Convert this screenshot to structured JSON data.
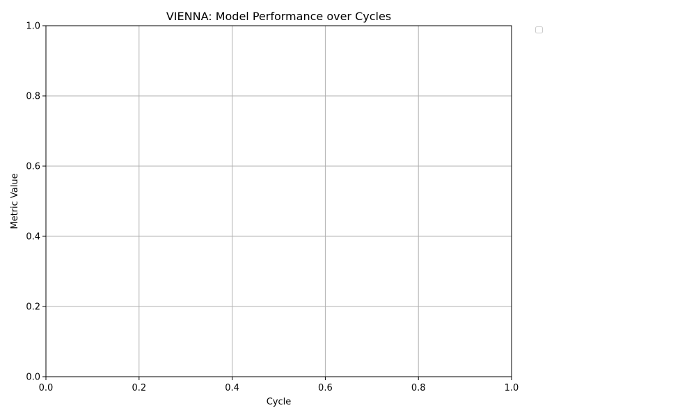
{
  "chart_data": {
    "type": "line",
    "title": "VIENNA: Model Performance over Cycles",
    "xlabel": "Cycle",
    "ylabel": "Metric Value",
    "xlim": [
      0.0,
      1.0
    ],
    "ylim": [
      0.0,
      1.0
    ],
    "x_ticks": [
      "0.0",
      "0.2",
      "0.4",
      "0.6",
      "0.8",
      "1.0"
    ],
    "y_ticks": [
      "0.0",
      "0.2",
      "0.4",
      "0.6",
      "0.8",
      "1.0"
    ],
    "grid": true,
    "legend": {
      "placement": "outside-top-right",
      "entries": []
    },
    "series": []
  }
}
